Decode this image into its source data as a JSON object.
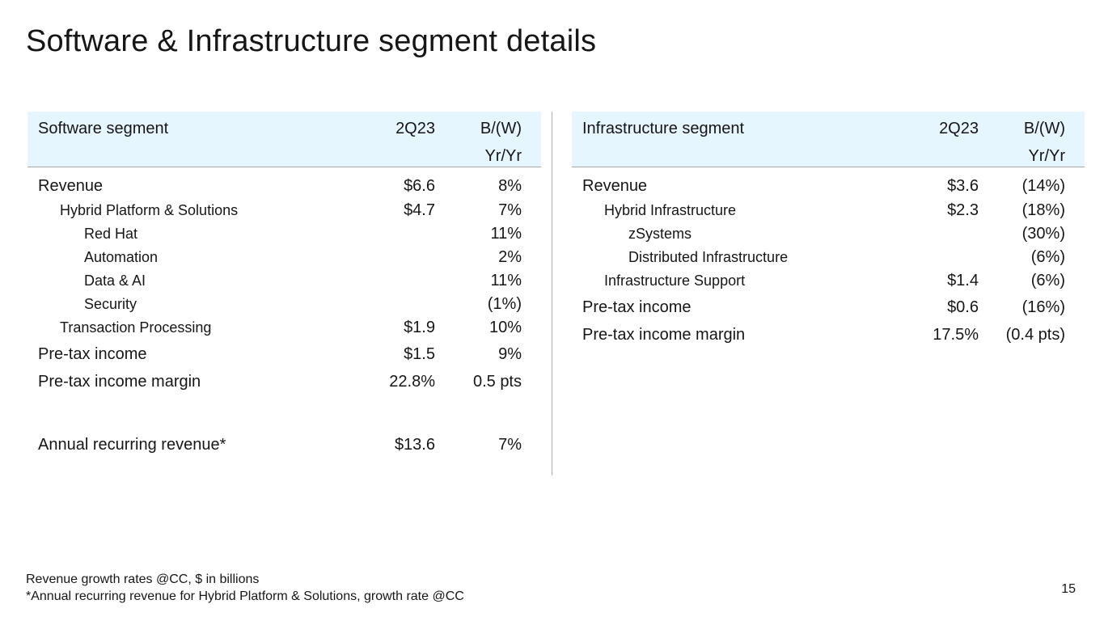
{
  "title": "Software & Infrastructure segment details",
  "software": {
    "header": {
      "segment": "Software segment",
      "period": "2Q23",
      "growth_line1": "B/(W)",
      "growth_line2": "Yr/Yr"
    },
    "rows": [
      {
        "label": "Revenue",
        "value": "$6.6",
        "growth": "8%"
      },
      {
        "label": "Hybrid Platform & Solutions",
        "value": "$4.7",
        "growth": "7%"
      },
      {
        "label": "Red Hat",
        "value": "",
        "growth": "11%"
      },
      {
        "label": "Automation",
        "value": "",
        "growth": "2%"
      },
      {
        "label": "Data & AI",
        "value": "",
        "growth": "11%"
      },
      {
        "label": "Security",
        "value": "",
        "growth": "(1%)"
      },
      {
        "label": "Transaction Processing",
        "value": "$1.9",
        "growth": "10%"
      },
      {
        "label": "Pre-tax income",
        "value": "$1.5",
        "growth": "9%"
      },
      {
        "label": "Pre-tax income margin",
        "value": "22.8%",
        "growth": "0.5 pts"
      },
      {
        "label": "Annual recurring revenue*",
        "value": "$13.6",
        "growth": "7%"
      }
    ]
  },
  "infrastructure": {
    "header": {
      "segment": "Infrastructure segment",
      "period": "2Q23",
      "growth_line1": "B/(W)",
      "growth_line2": "Yr/Yr"
    },
    "rows": [
      {
        "label": "Revenue",
        "value": "$3.6",
        "growth": "(14%)"
      },
      {
        "label": "Hybrid Infrastructure",
        "value": "$2.3",
        "growth": "(18%)"
      },
      {
        "label": "zSystems",
        "value": "",
        "growth": "(30%)"
      },
      {
        "label": "Distributed Infrastructure",
        "value": "",
        "growth": "(6%)"
      },
      {
        "label": "Infrastructure Support",
        "value": "$1.4",
        "growth": "(6%)"
      },
      {
        "label": "Pre-tax income",
        "value": "$0.6",
        "growth": "(16%)"
      },
      {
        "label": "Pre-tax income margin",
        "value": "17.5%",
        "growth": "(0.4 pts)"
      }
    ]
  },
  "footnotes": {
    "line1": "Revenue growth rates @CC, $ in billions",
    "line2": "*Annual recurring revenue for Hybrid Platform & Solutions, growth rate @CC"
  },
  "page_number": "15",
  "colors": {
    "header_bg": "#e5f6ff",
    "text": "#161616",
    "rule": "#a8a8a8"
  }
}
